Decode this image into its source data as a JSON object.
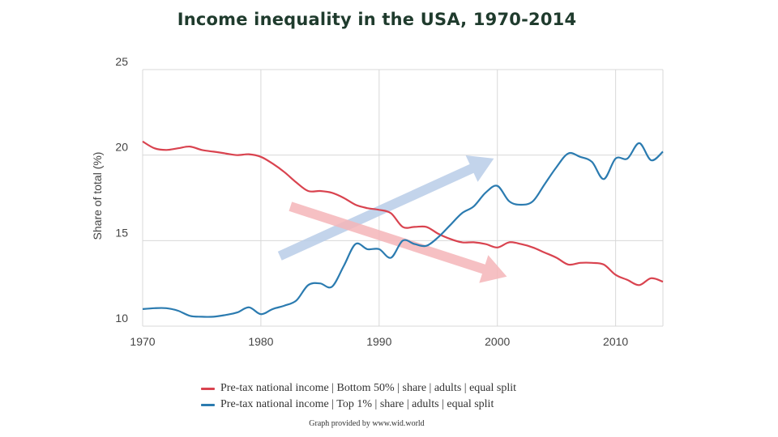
{
  "chart_data": {
    "type": "line",
    "title": "Income inequality in the USA, 1970-2014",
    "xlabel": "",
    "ylabel": "Share of total (%)",
    "xlim": [
      1970,
      2014
    ],
    "ylim": [
      10,
      25
    ],
    "xticks": [
      1970,
      1980,
      1990,
      2000,
      2010
    ],
    "yticks": [
      10,
      15,
      20,
      25
    ],
    "grid": true,
    "legend_position": "bottom",
    "series": [
      {
        "name": "Pre-tax national income | Bottom 50% | share | adults | equal split",
        "color": "#d9434f",
        "x": [
          1970,
          1971,
          1972,
          1973,
          1974,
          1975,
          1976,
          1977,
          1978,
          1979,
          1980,
          1981,
          1982,
          1983,
          1984,
          1985,
          1986,
          1987,
          1988,
          1989,
          1990,
          1991,
          1992,
          1993,
          1994,
          1995,
          1996,
          1997,
          1998,
          1999,
          2000,
          2001,
          2002,
          2003,
          2004,
          2005,
          2006,
          2007,
          2008,
          2009,
          2010,
          2011,
          2012,
          2013,
          2014
        ],
        "y": [
          20.8,
          20.4,
          20.3,
          20.4,
          20.5,
          20.3,
          20.2,
          20.1,
          20.0,
          20.05,
          19.9,
          19.5,
          19.0,
          18.4,
          17.9,
          17.9,
          17.8,
          17.5,
          17.1,
          16.9,
          16.8,
          16.6,
          15.8,
          15.8,
          15.8,
          15.4,
          15.1,
          14.9,
          14.9,
          14.8,
          14.6,
          14.9,
          14.8,
          14.6,
          14.3,
          14.0,
          13.6,
          13.7,
          13.7,
          13.6,
          13.0,
          12.7,
          12.4,
          12.8,
          12.6
        ]
      },
      {
        "name": "Pre-tax national income | Top 1% | share | adults | equal split",
        "color": "#2b7bb0",
        "x": [
          1970,
          1971,
          1972,
          1973,
          1974,
          1975,
          1976,
          1977,
          1978,
          1979,
          1980,
          1981,
          1982,
          1983,
          1984,
          1985,
          1986,
          1987,
          1988,
          1989,
          1990,
          1991,
          1992,
          1993,
          1994,
          1995,
          1996,
          1997,
          1998,
          1999,
          2000,
          2001,
          2002,
          2003,
          2004,
          2005,
          2006,
          2007,
          2008,
          2009,
          2010,
          2011,
          2012,
          2013,
          2014
        ],
        "y": [
          11.0,
          11.05,
          11.05,
          10.9,
          10.6,
          10.55,
          10.55,
          10.65,
          10.8,
          11.1,
          10.7,
          11.0,
          11.2,
          11.5,
          12.4,
          12.5,
          12.3,
          13.5,
          14.8,
          14.5,
          14.5,
          14.0,
          15.0,
          14.8,
          14.7,
          15.2,
          15.9,
          16.6,
          17.0,
          17.8,
          18.2,
          17.3,
          17.1,
          17.3,
          18.3,
          19.3,
          20.1,
          19.9,
          19.6,
          18.6,
          19.8,
          19.8,
          20.7,
          19.7,
          20.2
        ]
      }
    ]
  },
  "credit": "Graph provided by www.wid.world",
  "arrows": {
    "up_color": "#b8cde8",
    "down_color": "#f4b5b9"
  },
  "gridline_color": "#d8d8d8"
}
